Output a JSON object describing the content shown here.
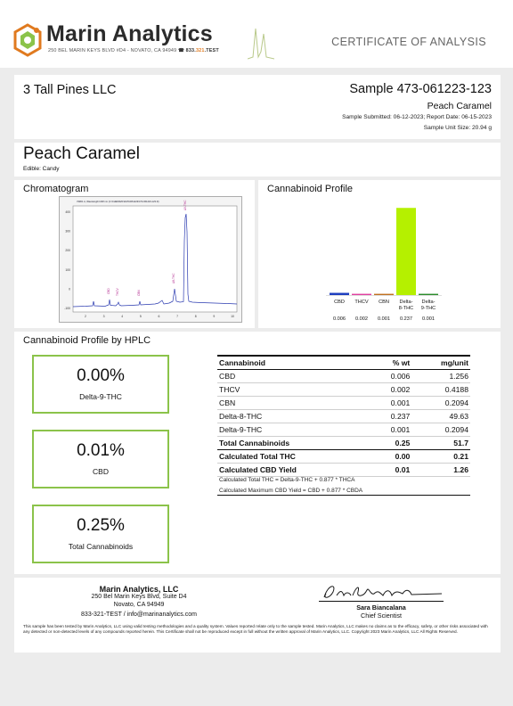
{
  "header": {
    "brand": "Marin Analytics",
    "address_line": "250 BEL MARIN KEYS BLVD #D4 - NOVATO, CA 94949",
    "phone_prefix": "833.",
    "phone_mid": "321",
    "phone_suffix": ".TEST",
    "doc_title": "CERTIFICATE OF ANALYSIS",
    "colors": {
      "brand_orange": "#e07a1f",
      "brand_green": "#8bc34a"
    }
  },
  "client": {
    "name": "3 Tall Pines LLC",
    "sample_id": "Sample 473-061223-123",
    "sample_name": "Peach Caramel",
    "dates": "Sample Submitted: 06-12-2023; Report Date: 06-15-2023",
    "unit_size": "Sample Unit Size: 20.94 g"
  },
  "product": {
    "name": "Peach Caramel",
    "type": "Edible: Candy"
  },
  "chromatogram": {
    "title": "Chromatogram",
    "header_text": "VWD1 A, Wavelength=228 nm (C:\\CHEM32\\1\\DATA\\061223\\473-061223-123.D)",
    "yticks": [
      "400",
      "300",
      "200",
      "100",
      "0",
      "-100"
    ],
    "xticks": [
      "2",
      "3",
      "4",
      "5",
      "6",
      "7",
      "8",
      "9",
      "10"
    ],
    "peak_labels": [
      "CBD",
      "THCV",
      "CBN",
      "Δ8-THC",
      "Δ9-THC"
    ]
  },
  "profile": {
    "title": "Cannabinoid Profile",
    "chart_data": {
      "type": "bar",
      "categories": [
        "CBD",
        "THCV",
        "CBN",
        "Delta-8-THC",
        "Delta-9-THC"
      ],
      "category_lines": [
        [
          "CBD"
        ],
        [
          "THCV"
        ],
        [
          "CBN"
        ],
        [
          "Delta-",
          "8-THC"
        ],
        [
          "Delta-",
          "9-THC"
        ]
      ],
      "values": [
        0.006,
        0.002,
        0.001,
        0.237,
        0.001
      ],
      "value_labels": [
        "0.006",
        "0.002",
        "0.001",
        "0.237",
        "0.001"
      ],
      "colors": [
        "#1f3fbf",
        "#e040a0",
        "#c07020",
        "#b5f000",
        "#2a8c2a"
      ],
      "ylim": [
        0,
        0.24
      ]
    }
  },
  "hplc": {
    "title": "Cannabinoid Profile by HPLC",
    "boxes": [
      {
        "value": "0.00%",
        "label": "Delta-9-THC"
      },
      {
        "value": "0.01%",
        "label": "CBD"
      },
      {
        "value": "0.25%",
        "label": "Total Cannabinoids"
      }
    ],
    "table": {
      "headers": [
        "Cannabinoid",
        "% wt",
        "mg/unit"
      ],
      "rows": [
        [
          "CBD",
          "0.006",
          "1.256"
        ],
        [
          "THCV",
          "0.002",
          "0.4188"
        ],
        [
          "CBN",
          "0.001",
          "0.2094"
        ],
        [
          "Delta-8-THC",
          "0.237",
          "49.63"
        ],
        [
          "Delta-9-THC",
          "0.001",
          "0.2094"
        ]
      ],
      "total": [
        "Total Cannabinoids",
        "0.25",
        "51.7"
      ],
      "calc_rows": [
        [
          "Calculated Total THC",
          "0.00",
          "0.21"
        ],
        [
          "Calculated CBD Yield",
          "0.01",
          "1.26"
        ]
      ],
      "footnotes": [
        "Calculated Total THC = Delta-9-THC + 0.877 * THCA",
        "Calculated Maximum CBD Yield = CBD + 0.877 * CBDA"
      ]
    }
  },
  "footer": {
    "lab_name": "Marin Analytics, LLC",
    "lab_address1": "250 Bel Marin Keys Blvd, Suite D4",
    "lab_address2": "Novato, CA 94949",
    "lab_contact": "833-321-TEST / info@marinanalytics.com",
    "signer_name": "Sara Biancalana",
    "signer_title": "Chief Scientist",
    "disclaimer": "This sample has been tested by Marin Analytics, LLC using valid testing methodologies and a quality system.  Values reported relate only to the sample tested.  Marin Analytics, LLC makes no claims as to the efficacy, safety, or other risks associated with any detected or non-detected levels of any compounds reported herein.  This Certificate shall not be reproduced except in full without the written approval of Marin Analytics, LLC.    Copyright 2023 Marin Analytics, LLC All Rights Reserved."
  }
}
